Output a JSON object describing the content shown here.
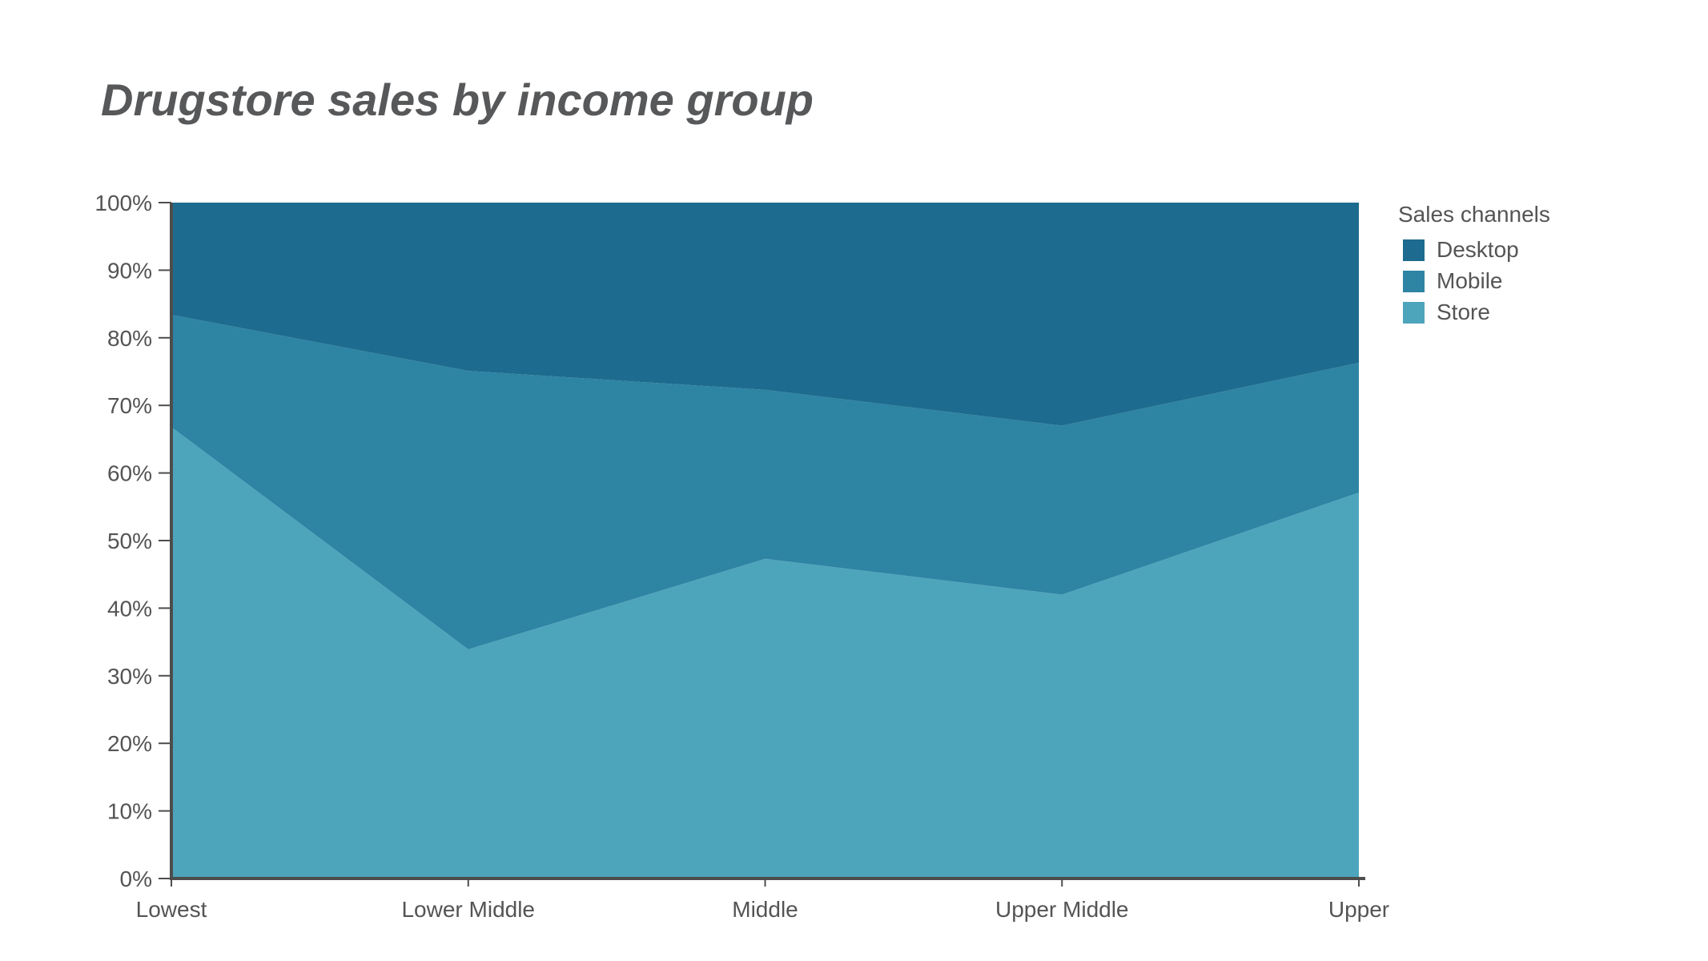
{
  "title": {
    "text": "Drugstore sales by income group"
  },
  "legend": {
    "title": "Sales channels",
    "items": [
      {
        "label": "Desktop",
        "color": "#1d6b8e"
      },
      {
        "label": "Mobile",
        "color": "#2e84a3"
      },
      {
        "label": "Store",
        "color": "#4da5bc"
      }
    ]
  },
  "colors": {
    "axis": "#4d4d4d",
    "tick_text": "#545454",
    "title_text": "#57585a",
    "background": "#ffffff"
  },
  "chart_data": {
    "type": "area",
    "stacked": true,
    "normalized_percent": true,
    "title": "Drugstore sales by income group",
    "categories": [
      "Lowest",
      "Lower Middle",
      "Middle",
      "Upper Middle",
      "Upper"
    ],
    "series": [
      {
        "name": "Store",
        "color": "#4da5bc",
        "values": [
          66.8,
          33.9,
          47.3,
          42.0,
          57.1
        ]
      },
      {
        "name": "Mobile",
        "color": "#2e84a3",
        "values": [
          16.6,
          41.2,
          25.0,
          25.0,
          19.2
        ]
      },
      {
        "name": "Desktop",
        "color": "#1d6b8e",
        "values": [
          16.6,
          24.9,
          27.7,
          33.0,
          23.7
        ]
      }
    ],
    "cumulative_boundaries": {
      "store_top_percent": [
        66.8,
        33.9,
        47.3,
        42.0,
        57.1
      ],
      "mobile_top_percent": [
        83.4,
        75.1,
        72.3,
        67.0,
        76.3
      ],
      "desktop_top_percent": [
        100,
        100,
        100,
        100,
        100
      ]
    },
    "xlabel": "",
    "ylabel": "",
    "ylim": [
      0,
      100
    ],
    "y_ticks_percent": [
      0,
      10,
      20,
      30,
      40,
      50,
      60,
      70,
      80,
      90,
      100
    ],
    "y_tick_suffix": "%",
    "grid": false,
    "legend_title": "Sales channels",
    "legend_position": "right"
  }
}
